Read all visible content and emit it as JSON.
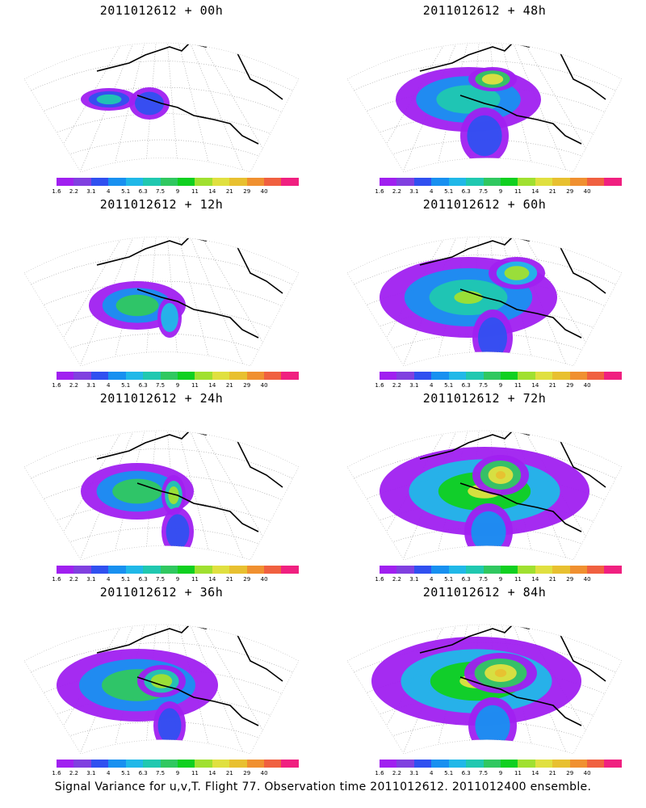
{
  "panels": [
    {
      "title": "2011012612 + 00h",
      "icon": "map-icon"
    },
    {
      "title": "2011012612 + 48h",
      "icon": "map-icon"
    },
    {
      "title": "2011012612 + 12h",
      "icon": "map-icon"
    },
    {
      "title": "2011012612 + 60h",
      "icon": "map-icon"
    },
    {
      "title": "2011012612 + 24h",
      "icon": "map-icon"
    },
    {
      "title": "2011012612 + 72h",
      "icon": "map-icon"
    },
    {
      "title": "2011012612 + 36h",
      "icon": "map-icon"
    },
    {
      "title": "2011012612 + 84h",
      "icon": "map-icon"
    }
  ],
  "colorbar": {
    "labels": [
      "1.6",
      "2.2",
      "3.1",
      "4",
      "5.1",
      "6.3",
      "7.5",
      "9",
      "11",
      "14",
      "21",
      "29",
      "40"
    ],
    "colors": [
      "#a020f0",
      "#8040e0",
      "#3050f0",
      "#1890f0",
      "#20b8e8",
      "#20c8b0",
      "#30c860",
      "#10d020",
      "#a0e030",
      "#e0e040",
      "#e8c030",
      "#f09030",
      "#f06040",
      "#f02080"
    ]
  },
  "caption": "Signal Variance for u,v,T. Flight 77. Observation time 2011012612. 2011012400 ensemble."
}
